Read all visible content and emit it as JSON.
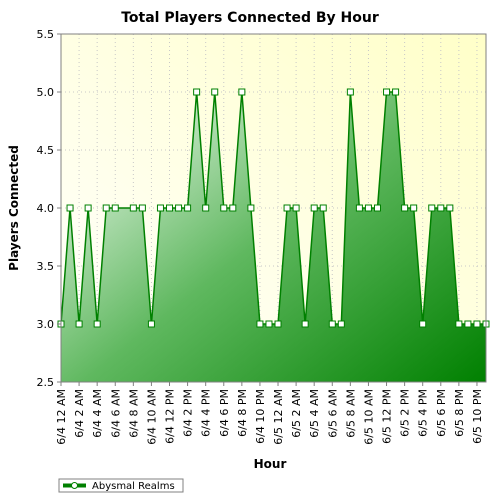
{
  "chart_data": {
    "type": "area",
    "title": "Total Players Connected By Hour",
    "xlabel": "Hour",
    "ylabel": "Players Connected",
    "ylim": [
      2.5,
      5.5
    ],
    "yticks": [
      2.5,
      3.0,
      3.5,
      4.0,
      4.5,
      5.0,
      5.5
    ],
    "grid": true,
    "legend_position": "bottom-left",
    "x_start_hour": 0,
    "x_end_hour": 47,
    "x_tick_hours": [
      0,
      2,
      4,
      6,
      8,
      10,
      12,
      14,
      16,
      18,
      20,
      22,
      24,
      26,
      28,
      30,
      32,
      34,
      36,
      38,
      40,
      42,
      44,
      46
    ],
    "x_tick_labels": [
      "6/4 12 AM",
      "6/4 2 AM",
      "6/4 4 AM",
      "6/4 6 AM",
      "6/4 8 AM",
      "6/4 10 AM",
      "6/4 12 PM",
      "6/4 2 PM",
      "6/4 4 PM",
      "6/4 6 PM",
      "6/4 8 PM",
      "6/4 10 PM",
      "6/5 12 AM",
      "6/5 2 AM",
      "6/5 4 AM",
      "6/5 6 AM",
      "6/5 8 AM",
      "6/5 10 AM",
      "6/5 12 PM",
      "6/5 2 PM",
      "6/5 4 PM",
      "6/5 6 PM",
      "6/5 8 PM",
      "6/5 10 PM"
    ],
    "series": [
      {
        "name": "Abysmal Realms",
        "color": "#008000",
        "x": [
          0,
          1,
          2,
          3,
          4,
          5,
          6,
          8,
          9,
          10,
          11,
          12,
          13,
          14,
          15,
          16,
          17,
          18,
          19,
          20,
          21,
          22,
          23,
          24,
          25,
          26,
          27,
          28,
          29,
          30,
          31,
          32,
          33,
          34,
          35,
          36,
          37,
          38,
          39,
          40,
          41,
          42,
          43,
          44,
          45,
          46,
          47
        ],
        "values": [
          3,
          4,
          3,
          4,
          3,
          4,
          4,
          4,
          4,
          3,
          4,
          4,
          4,
          4,
          5,
          4,
          5,
          4,
          4,
          5,
          4,
          3,
          3,
          3,
          4,
          4,
          3,
          4,
          4,
          3,
          3,
          5,
          4,
          4,
          4,
          5,
          5,
          4,
          4,
          3,
          4,
          4,
          4,
          3,
          3,
          3,
          3
        ]
      }
    ]
  }
}
